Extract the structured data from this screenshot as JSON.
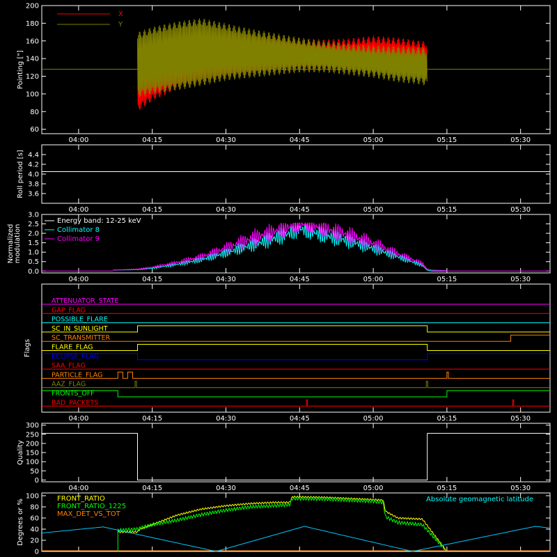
{
  "colors": {
    "background": "#000000",
    "axes": "#ffffff"
  },
  "x_axis": {
    "ticks": [
      "04:00",
      "04:15",
      "04:30",
      "04:45",
      "05:00",
      "05:15",
      "05:30"
    ],
    "tick_minutes": [
      0,
      15,
      30,
      45,
      60,
      75,
      90
    ],
    "range_minutes": [
      -7.5,
      96
    ]
  },
  "chart_data": [
    {
      "type": "line",
      "ylabel": "Pointing [\"]",
      "ylim": [
        55,
        200
      ],
      "yticks": [
        60,
        80,
        100,
        120,
        140,
        160,
        180,
        200
      ],
      "legend": [
        "X",
        "Y"
      ],
      "legend_placement": "top-left",
      "series": [
        {
          "name": "X",
          "color": "#ff0000",
          "upper_envelope": {
            "x": [
              12,
              15,
              20,
              25,
              30,
              35,
              40,
              45,
              50,
              55,
              60,
              65,
              70,
              71
            ],
            "y": [
              158,
              150,
              156,
              166,
              170,
              168,
              166,
              163,
              162,
              163,
              166,
              164,
              160,
              160
            ]
          },
          "lower_envelope": {
            "x": [
              12,
              15,
              20,
              25,
              30,
              35,
              40,
              45,
              50,
              55,
              60,
              65,
              70,
              71
            ],
            "y": [
              80,
              92,
              105,
              112,
              117,
              121,
              125,
              126,
              126,
              125,
              125,
              126,
              120,
              118
            ]
          }
        },
        {
          "name": "Y",
          "color": "#808000",
          "upper_envelope": {
            "x": [
              12,
              15,
              20,
              25,
              30,
              35,
              40,
              45,
              50,
              55,
              60,
              65,
              70,
              71
            ],
            "y": [
              170,
              176,
              182,
              186,
              180,
              174,
              169,
              164,
              160,
              157,
              155,
              154,
              153,
              152
            ]
          },
          "lower_envelope": {
            "x": [
              12,
              15,
              20,
              25,
              30,
              35,
              40,
              45,
              50,
              55,
              60,
              65,
              70,
              71
            ],
            "y": [
              96,
              100,
              104,
              109,
              115,
              118,
              121,
              124,
              124,
              121,
              118,
              113,
              110,
              108
            ]
          }
        },
        {
          "name": "reference",
          "color": "#808000",
          "constant": 128
        }
      ]
    },
    {
      "type": "line",
      "ylabel": "Roll period [s]",
      "ylim": [
        3.4,
        4.6
      ],
      "yticks": [
        3.6,
        3.8,
        4.0,
        4.2,
        4.4
      ],
      "series": [
        {
          "color": "#ffffff",
          "constant": 4.05
        }
      ]
    },
    {
      "type": "line",
      "ylabel": "Normalized modulation",
      "ylim": [
        -0.1,
        3.0
      ],
      "yticks": [
        0.0,
        0.5,
        1.0,
        1.5,
        2.0,
        2.5,
        3.0
      ],
      "title": "Energy band: 12-25 keV",
      "legend": [
        "Collimator 8",
        "Collimator 9"
      ],
      "series": [
        {
          "name": "Collimator 8",
          "color": "#00ffff",
          "x": [
            7,
            12,
            15,
            20,
            25,
            30,
            35,
            40,
            43,
            45,
            47,
            50,
            55,
            60,
            65,
            70,
            71,
            72,
            75
          ],
          "y": [
            0.05,
            0.08,
            0.15,
            0.35,
            0.6,
            0.95,
            1.35,
            1.75,
            2.0,
            2.25,
            2.1,
            1.9,
            1.6,
            1.2,
            0.75,
            0.3,
            0.05,
            0.0,
            0.0
          ]
        },
        {
          "name": "Collimator 9",
          "color": "#ff00ff",
          "x": [
            7,
            12,
            15,
            20,
            25,
            30,
            35,
            40,
            43,
            45,
            47,
            50,
            55,
            60,
            65,
            70,
            71,
            72,
            75
          ],
          "y": [
            0.05,
            0.1,
            0.2,
            0.45,
            0.75,
            1.2,
            1.7,
            2.1,
            2.35,
            2.5,
            2.45,
            2.25,
            1.9,
            1.45,
            0.9,
            0.4,
            0.1,
            0.05,
            0.02
          ]
        }
      ]
    },
    {
      "type": "line",
      "ylabel": "Flags",
      "flags": [
        {
          "name": "ATTENUATOR_STATE",
          "color": "#ff00ff",
          "segments": [
            [
              -7.5,
              0
            ]
          ]
        },
        {
          "name": "GAP_FLAG",
          "color": "#ff0000",
          "segments": [
            [
              -7.5,
              0
            ]
          ]
        },
        {
          "name": "POSSIBLE_FLARE",
          "color": "#00ffff",
          "segments": [
            [
              -7.5,
              0
            ]
          ]
        },
        {
          "name": "SC_IN_SUNLIGHT",
          "color": "#ffff00",
          "segments": [
            [
              -7.5,
              0
            ],
            [
              12,
              1
            ],
            [
              71,
              0
            ]
          ]
        },
        {
          "name": "SC_TRANSMITTER",
          "color": "#ff8000",
          "segments": [
            [
              -7.5,
              0
            ],
            [
              88,
              1
            ]
          ]
        },
        {
          "name": "FLARE_FLAG",
          "color": "#ffff00",
          "segments": [
            [
              -7.5,
              0
            ],
            [
              12,
              1
            ],
            [
              71,
              0
            ]
          ]
        },
        {
          "name": "ECLIPSE_FLAG",
          "color": "#0000ff",
          "segments": [
            [
              -7.5,
              1
            ],
            [
              12,
              0
            ],
            [
              71,
              1
            ]
          ]
        },
        {
          "name": "SAA_FLAG",
          "color": "#ff0000",
          "segments": [
            [
              -7.5,
              0
            ]
          ]
        },
        {
          "name": "PARTICLE_FLAG",
          "color": "#ff8000",
          "segments": [
            [
              -7.5,
              0
            ],
            [
              8,
              1
            ],
            [
              9,
              0
            ],
            [
              10,
              1
            ],
            [
              11,
              0
            ],
            [
              75,
              1
            ],
            [
              75.3,
              0
            ]
          ]
        },
        {
          "name": "AAZ_FLAG",
          "color": "#808000",
          "segments": [
            [
              -7.5,
              0
            ],
            [
              11.5,
              1
            ],
            [
              11.8,
              0
            ],
            [
              70.8,
              1
            ],
            [
              71.1,
              0
            ]
          ]
        },
        {
          "name": "FRONTS_OFF",
          "color": "#00ff00",
          "segments": [
            [
              -7.5,
              1
            ],
            [
              8,
              0
            ],
            [
              75,
              1
            ]
          ]
        },
        {
          "name": "BAD_PACKETS",
          "color": "#ff0000",
          "segments": [
            [
              -7.5,
              0
            ],
            [
              46.4,
              1
            ],
            [
              46.6,
              0
            ],
            [
              88.4,
              1
            ],
            [
              88.6,
              0
            ]
          ]
        }
      ]
    },
    {
      "type": "line",
      "ylabel": "Quality",
      "ylim": [
        -10,
        310
      ],
      "yticks": [
        0,
        50,
        100,
        150,
        200,
        250,
        300
      ],
      "series": [
        {
          "color": "#ffffff",
          "x": [
            -7.5,
            12,
            12,
            71,
            71,
            96
          ],
          "y": [
            255,
            255,
            0,
            0,
            255,
            255
          ]
        }
      ]
    },
    {
      "type": "line",
      "ylabel": "Degrees or %",
      "ylim": [
        0,
        105
      ],
      "yticks": [
        0,
        20,
        40,
        60,
        80,
        100
      ],
      "annotation": "Absolute geomagnetic latitude",
      "legend": [
        "FRONT_RATIO",
        "FRONT_RATIO_1225",
        "MAX_DET_VS_TOT"
      ],
      "series": [
        {
          "name": "FRONT_RATIO",
          "color": "#ffff00",
          "x": [
            8,
            12,
            12.5,
            15,
            20,
            25,
            30,
            35,
            40,
            43,
            43.5,
            50,
            55,
            60,
            62,
            62.5,
            65,
            70,
            75
          ],
          "y": [
            35,
            35,
            40,
            48,
            65,
            76,
            82,
            86,
            88,
            88,
            98,
            97,
            95,
            93,
            92,
            72,
            60,
            58,
            0
          ]
        },
        {
          "name": "FRONT_RATIO_1225",
          "color": "#00ff00",
          "x": [
            8,
            12,
            12.5,
            15,
            20,
            25,
            30,
            35,
            40,
            43,
            43.5,
            50,
            55,
            60,
            62,
            62.5,
            65,
            70,
            75
          ],
          "y": [
            38,
            40,
            42,
            48,
            56,
            66,
            74,
            80,
            82,
            84,
            95,
            94,
            92,
            90,
            88,
            62,
            52,
            48,
            0
          ]
        },
        {
          "name": "MAX_DET_VS_TOT",
          "color": "#ff8000",
          "x": [
            -7.5,
            96
          ],
          "y": [
            0,
            0
          ]
        },
        {
          "name": "Absolute geomagnetic latitude",
          "color": "#00c8ff",
          "x": [
            -7.5,
            5,
            28,
            46,
            68,
            93,
            96
          ],
          "y": [
            33,
            44,
            0,
            45,
            0,
            45,
            42
          ]
        }
      ]
    }
  ]
}
